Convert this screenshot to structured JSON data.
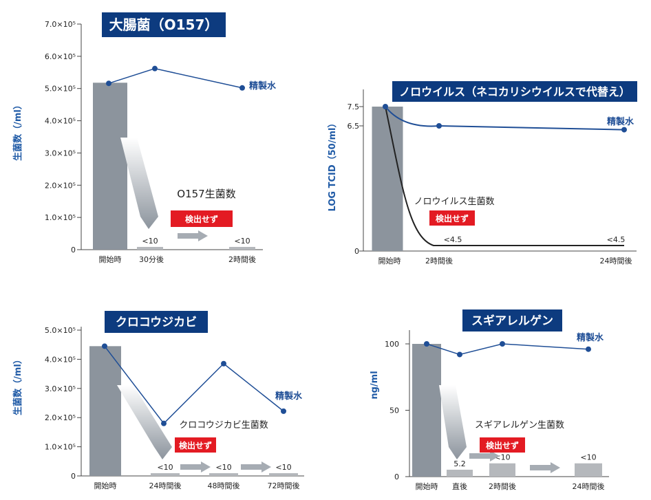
{
  "chart_data": [
    {
      "type": "bar+line",
      "title": "大腸菌（O157）",
      "ylabel": "生菌数（/ml）",
      "ylim": [
        0,
        700000
      ],
      "yticks": [
        {
          "v": 0,
          "label": "0"
        },
        {
          "v": 100000,
          "label": "1.0×10⁵"
        },
        {
          "v": 200000,
          "label": "2.0×10⁵"
        },
        {
          "v": 300000,
          "label": "3.0×10⁵"
        },
        {
          "v": 400000,
          "label": "4.0×10⁵"
        },
        {
          "v": 500000,
          "label": "5.0×10⁵"
        },
        {
          "v": 600000,
          "label": "6.0×10⁵"
        },
        {
          "v": 700000,
          "label": "7.0×10⁵"
        }
      ],
      "categories": [
        "開始時",
        "30分後",
        "2時間後"
      ],
      "bars": [
        {
          "name": "O157生菌数",
          "value": 518000,
          "value_label": ""
        },
        {
          "name": "O157生菌数",
          "value": 10,
          "value_label": "<10"
        },
        {
          "name": "O157生菌数",
          "value": 10,
          "value_label": "<10"
        }
      ],
      "line": {
        "name": "精製水",
        "values": [
          516000,
          562000,
          502000
        ]
      },
      "bar_series_label": "O157生菌数",
      "badge": "検出せず"
    },
    {
      "type": "bar+line",
      "title": "ノロウイルス（ネコカリシウイルスで代替え）",
      "ylabel": "LOG TCID（50/ml）",
      "ylim": [
        0,
        7.5
      ],
      "yticks": [
        {
          "v": 0,
          "label": "0"
        },
        {
          "v": 6.5,
          "label": "6.5"
        },
        {
          "v": 7.5,
          "label": "7.5"
        }
      ],
      "categories": [
        "開始時",
        "2時間後",
        "24時間後"
      ],
      "bars": [
        {
          "name": "ノロウイルス生菌数",
          "value": 7.5,
          "value_label": ""
        }
      ],
      "line": {
        "name": "精製水",
        "values": [
          7.5,
          6.5,
          6.3
        ]
      },
      "decline_series": {
        "name": "ノロウイルス生菌数",
        "labels": [
          "<4.5",
          "<4.5"
        ]
      },
      "bar_series_label": "ノロウイルス生菌数",
      "badge": "検出せず"
    },
    {
      "type": "bar+line",
      "title": "クロコウジカビ",
      "ylabel": "生菌数（/ml）",
      "ylim": [
        0,
        500000
      ],
      "yticks": [
        {
          "v": 0,
          "label": "0"
        },
        {
          "v": 100000,
          "label": "1.0×10⁵"
        },
        {
          "v": 200000,
          "label": "2.0×10⁵"
        },
        {
          "v": 300000,
          "label": "3.0×10⁵"
        },
        {
          "v": 400000,
          "label": "4.0×10⁵"
        },
        {
          "v": 500000,
          "label": "5.0×10⁵"
        }
      ],
      "categories": [
        "開始時",
        "24時間後",
        "48時間後",
        "72時間後"
      ],
      "bars": [
        {
          "name": "クロコウジカビ生菌数",
          "value": 445000,
          "value_label": ""
        },
        {
          "name": "クロコウジカビ生菌数",
          "value": 10,
          "value_label": "<10"
        },
        {
          "name": "クロコウジカビ生菌数",
          "value": 10,
          "value_label": "<10"
        },
        {
          "name": "クロコウジカビ生菌数",
          "value": 10,
          "value_label": "<10"
        }
      ],
      "line": {
        "name": "精製水",
        "values": [
          445000,
          180000,
          385000,
          222000
        ]
      },
      "bar_series_label": "クロコウジカビ生菌数",
      "badge": "検出せず"
    },
    {
      "type": "bar+line",
      "title": "スギアレルゲン",
      "ylabel": "ng/ml",
      "ylim": [
        0,
        100
      ],
      "yticks": [
        {
          "v": 0,
          "label": "0"
        },
        {
          "v": 50,
          "label": "50"
        },
        {
          "v": 100,
          "label": "100"
        }
      ],
      "categories": [
        "開始時",
        "直後",
        "2時間後",
        "24時間後"
      ],
      "bars": [
        {
          "name": "スギアレルゲン生菌数",
          "value": 100,
          "value_label": ""
        },
        {
          "name": "スギアレルゲン生菌数",
          "value": 5.2,
          "value_label": "5.2"
        },
        {
          "name": "スギアレルゲン生菌数",
          "value": 10,
          "value_label": "<10"
        },
        {
          "name": "スギアレルゲン生菌数",
          "value": 10,
          "value_label": "<10"
        }
      ],
      "line": {
        "name": "精製水",
        "values": [
          100,
          92,
          100,
          96
        ]
      },
      "bar_series_label": "スギアレルゲン生菌数",
      "badge": "検出せず"
    }
  ],
  "colors": {
    "title_bg": "#0d3b7f",
    "title_text": "#ffffff",
    "ylabel": "#1f5aa6",
    "bar": "#8c949d",
    "bar_small": "#b5b8bc",
    "line": "#1f4e96",
    "point": "#1f4e96",
    "decline": "#222222",
    "badge_bg": "#e31b23",
    "badge_text": "#ffffff",
    "arrow": "#a6acb3",
    "axis": "#444444"
  }
}
